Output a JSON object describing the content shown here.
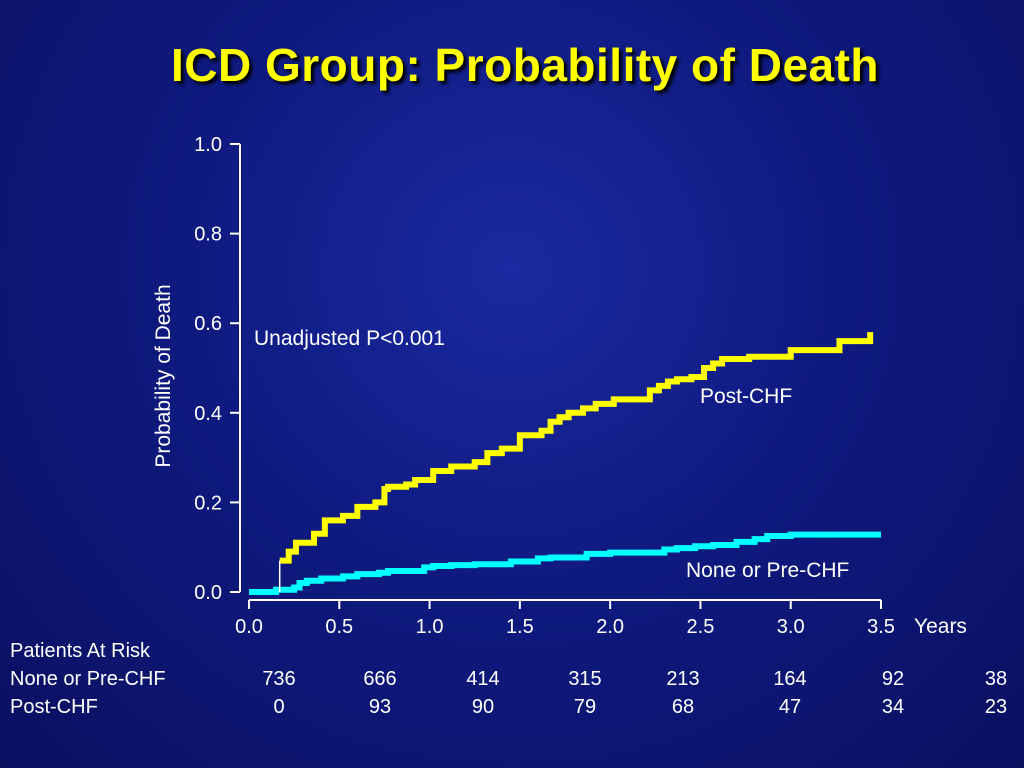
{
  "title": "ICD Group: Probability of Death",
  "colors": {
    "background": "#0f1a80",
    "title": "#ffff00",
    "post_chf": "#ffff00",
    "pre_chf": "#00ffff",
    "axis": "#ffffff"
  },
  "chart_data": {
    "type": "line",
    "step": true,
    "ylabel": "Probability of Death",
    "x_unit_label": "Years",
    "xlim": [
      0,
      3.5
    ],
    "ylim": [
      0,
      1.0
    ],
    "x_ticks": [
      "0.0",
      "0.5",
      "1.0",
      "1.5",
      "2.0",
      "2.5",
      "3.0",
      "3.5"
    ],
    "y_ticks": [
      "0.0",
      "0.2",
      "0.4",
      "0.6",
      "0.8",
      "1.0"
    ],
    "grid": false,
    "annotation": "Unadjusted P<0.001",
    "series": [
      {
        "name": "Post-CHF",
        "color": "#ffff00",
        "points": [
          [
            0.17,
            0.07
          ],
          [
            0.22,
            0.09
          ],
          [
            0.26,
            0.11
          ],
          [
            0.36,
            0.13
          ],
          [
            0.42,
            0.16
          ],
          [
            0.52,
            0.17
          ],
          [
            0.6,
            0.19
          ],
          [
            0.7,
            0.2
          ],
          [
            0.75,
            0.23
          ],
          [
            0.77,
            0.235
          ],
          [
            0.87,
            0.24
          ],
          [
            0.92,
            0.25
          ],
          [
            1.02,
            0.27
          ],
          [
            1.12,
            0.28
          ],
          [
            1.25,
            0.29
          ],
          [
            1.32,
            0.31
          ],
          [
            1.4,
            0.32
          ],
          [
            1.5,
            0.35
          ],
          [
            1.62,
            0.36
          ],
          [
            1.67,
            0.38
          ],
          [
            1.72,
            0.39
          ],
          [
            1.77,
            0.4
          ],
          [
            1.85,
            0.41
          ],
          [
            1.92,
            0.42
          ],
          [
            2.02,
            0.43
          ],
          [
            2.22,
            0.45
          ],
          [
            2.27,
            0.46
          ],
          [
            2.32,
            0.47
          ],
          [
            2.37,
            0.475
          ],
          [
            2.45,
            0.48
          ],
          [
            2.52,
            0.5
          ],
          [
            2.57,
            0.51
          ],
          [
            2.62,
            0.52
          ],
          [
            2.77,
            0.525
          ],
          [
            3.0,
            0.54
          ],
          [
            3.27,
            0.56
          ],
          [
            3.44,
            0.58
          ]
        ]
      },
      {
        "name": "None or Pre-CHF",
        "color": "#00ffff",
        "points": [
          [
            0.0,
            0.0
          ],
          [
            0.15,
            0.005
          ],
          [
            0.25,
            0.01
          ],
          [
            0.28,
            0.02
          ],
          [
            0.32,
            0.025
          ],
          [
            0.4,
            0.03
          ],
          [
            0.52,
            0.035
          ],
          [
            0.6,
            0.04
          ],
          [
            0.72,
            0.043
          ],
          [
            0.77,
            0.047
          ],
          [
            0.97,
            0.055
          ],
          [
            1.02,
            0.058
          ],
          [
            1.12,
            0.06
          ],
          [
            1.25,
            0.062
          ],
          [
            1.45,
            0.068
          ],
          [
            1.6,
            0.075
          ],
          [
            1.67,
            0.077
          ],
          [
            1.87,
            0.085
          ],
          [
            2.0,
            0.088
          ],
          [
            2.3,
            0.095
          ],
          [
            2.37,
            0.098
          ],
          [
            2.47,
            0.102
          ],
          [
            2.57,
            0.105
          ],
          [
            2.7,
            0.112
          ],
          [
            2.8,
            0.118
          ],
          [
            2.87,
            0.125
          ],
          [
            3.0,
            0.128
          ],
          [
            3.5,
            0.128
          ]
        ]
      }
    ]
  },
  "risk_table": {
    "header": "Patients At Risk",
    "rows": [
      {
        "label": "None or Pre-CHF",
        "values": [
          "736",
          "666",
          "414",
          "315",
          "213",
          "164",
          "92",
          "38"
        ]
      },
      {
        "label": "Post-CHF",
        "values": [
          "0",
          "93",
          "90",
          "79",
          "68",
          "47",
          "34",
          "23"
        ]
      }
    ]
  }
}
